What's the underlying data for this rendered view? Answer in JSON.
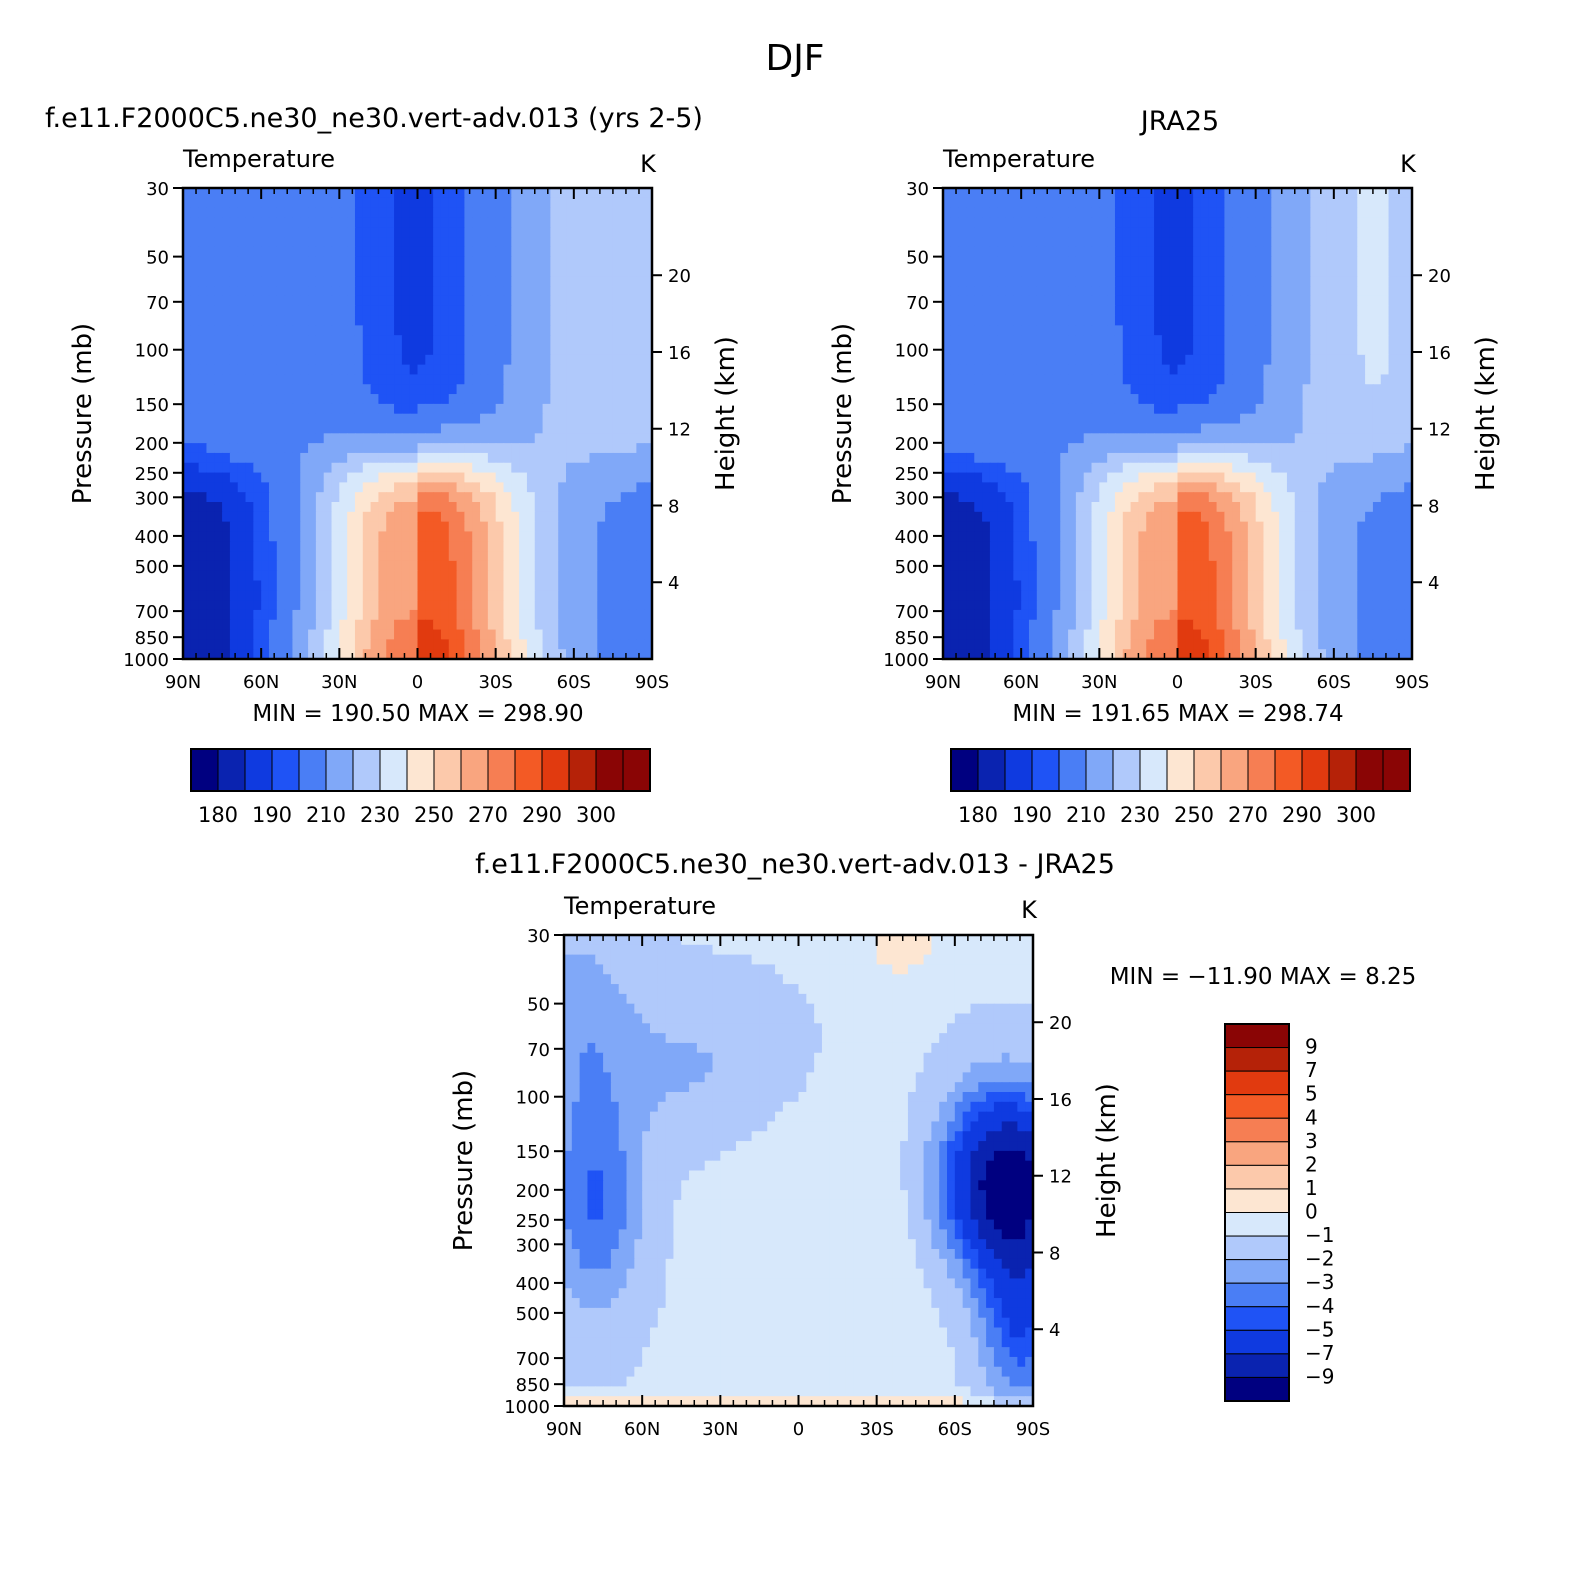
{
  "figure": {
    "title": "DJF"
  },
  "chart_data": [
    {
      "id": "model",
      "type": "heatmap",
      "title": "f.e11.F2000C5.ne30_ne30.vert-adv.013 (yrs 2-5)",
      "subtitle": "Temperature",
      "units": "K",
      "ylabel": "Pressure (mb)",
      "y2label": "Height (km)",
      "x_ticks": [
        "90N",
        "60N",
        "30N",
        "0",
        "30S",
        "60S",
        "90S"
      ],
      "x_lat": [
        90,
        60,
        30,
        0,
        -30,
        -60,
        -90
      ],
      "y_ticks": [
        30,
        50,
        70,
        100,
        150,
        200,
        250,
        300,
        400,
        500,
        700,
        850,
        1000
      ],
      "y2_ticks": [
        20,
        16,
        12,
        8,
        4
      ],
      "y_scale": "log",
      "ylim": [
        1000,
        30
      ],
      "minmax": "MIN =  190.50   MAX =  298.90",
      "min": 190.5,
      "max": 298.9,
      "levels": [
        175,
        180,
        185,
        190,
        200,
        210,
        220,
        230,
        240,
        250,
        260,
        270,
        280,
        290,
        295,
        300
      ],
      "colorbar_labels": [
        "180",
        "190",
        "210",
        "230",
        "250",
        "270",
        "290",
        "300"
      ]
    },
    {
      "id": "obs",
      "type": "heatmap",
      "title": "JRA25",
      "subtitle": "Temperature",
      "units": "K",
      "ylabel": "Pressure (mb)",
      "y2label": "Height (km)",
      "x_ticks": [
        "90N",
        "60N",
        "30N",
        "0",
        "30S",
        "60S",
        "90S"
      ],
      "x_lat": [
        90,
        60,
        30,
        0,
        -30,
        -60,
        -90
      ],
      "y_ticks": [
        30,
        50,
        70,
        100,
        150,
        200,
        250,
        300,
        400,
        500,
        700,
        850,
        1000
      ],
      "y2_ticks": [
        20,
        16,
        12,
        8,
        4
      ],
      "y_scale": "log",
      "ylim": [
        1000,
        30
      ],
      "minmax": "MIN =  191.65   MAX =  298.74",
      "min": 191.65,
      "max": 298.74,
      "levels": [
        175,
        180,
        185,
        190,
        200,
        210,
        220,
        230,
        240,
        250,
        260,
        270,
        280,
        290,
        295,
        300
      ],
      "colorbar_labels": [
        "180",
        "190",
        "210",
        "230",
        "250",
        "270",
        "290",
        "300"
      ]
    },
    {
      "id": "diff",
      "type": "heatmap",
      "title": "f.e11.F2000C5.ne30_ne30.vert-adv.013 - JRA25",
      "subtitle": "Temperature",
      "units": "K",
      "ylabel": "Pressure (mb)",
      "y2label": "Height (km)",
      "x_ticks": [
        "90N",
        "60N",
        "30N",
        "0",
        "30S",
        "60S",
        "90S"
      ],
      "x_lat": [
        90,
        60,
        30,
        0,
        -30,
        -60,
        -90
      ],
      "y_ticks": [
        30,
        50,
        70,
        100,
        150,
        200,
        250,
        300,
        400,
        500,
        700,
        850,
        1000
      ],
      "y2_ticks": [
        20,
        16,
        12,
        8,
        4
      ],
      "y_scale": "log",
      "ylim": [
        1000,
        30
      ],
      "minmax": "MIN = −11.90   MAX =    8.25",
      "min": -11.9,
      "max": 8.25,
      "levels": [
        -9,
        -7,
        -5,
        -4,
        -3,
        -2,
        -1,
        0,
        1,
        2,
        3,
        4,
        5,
        7,
        9
      ],
      "colorbar_labels": [
        "9",
        "7",
        "5",
        "4",
        "3",
        "2",
        "1",
        "0",
        "−1",
        "−2",
        "−3",
        "−4",
        "−5",
        "−7",
        "−9"
      ]
    }
  ],
  "palette": [
    "#000080",
    "#0a23b0",
    "#0f3ae0",
    "#1f53f5",
    "#4a7ef5",
    "#80a8f8",
    "#b0c9fb",
    "#d7e8fb",
    "#fde6d2",
    "#fcc9ab",
    "#f9a57f",
    "#f67e53",
    "#f35a25",
    "#e13a0f",
    "#b52208",
    "#8a0505"
  ]
}
